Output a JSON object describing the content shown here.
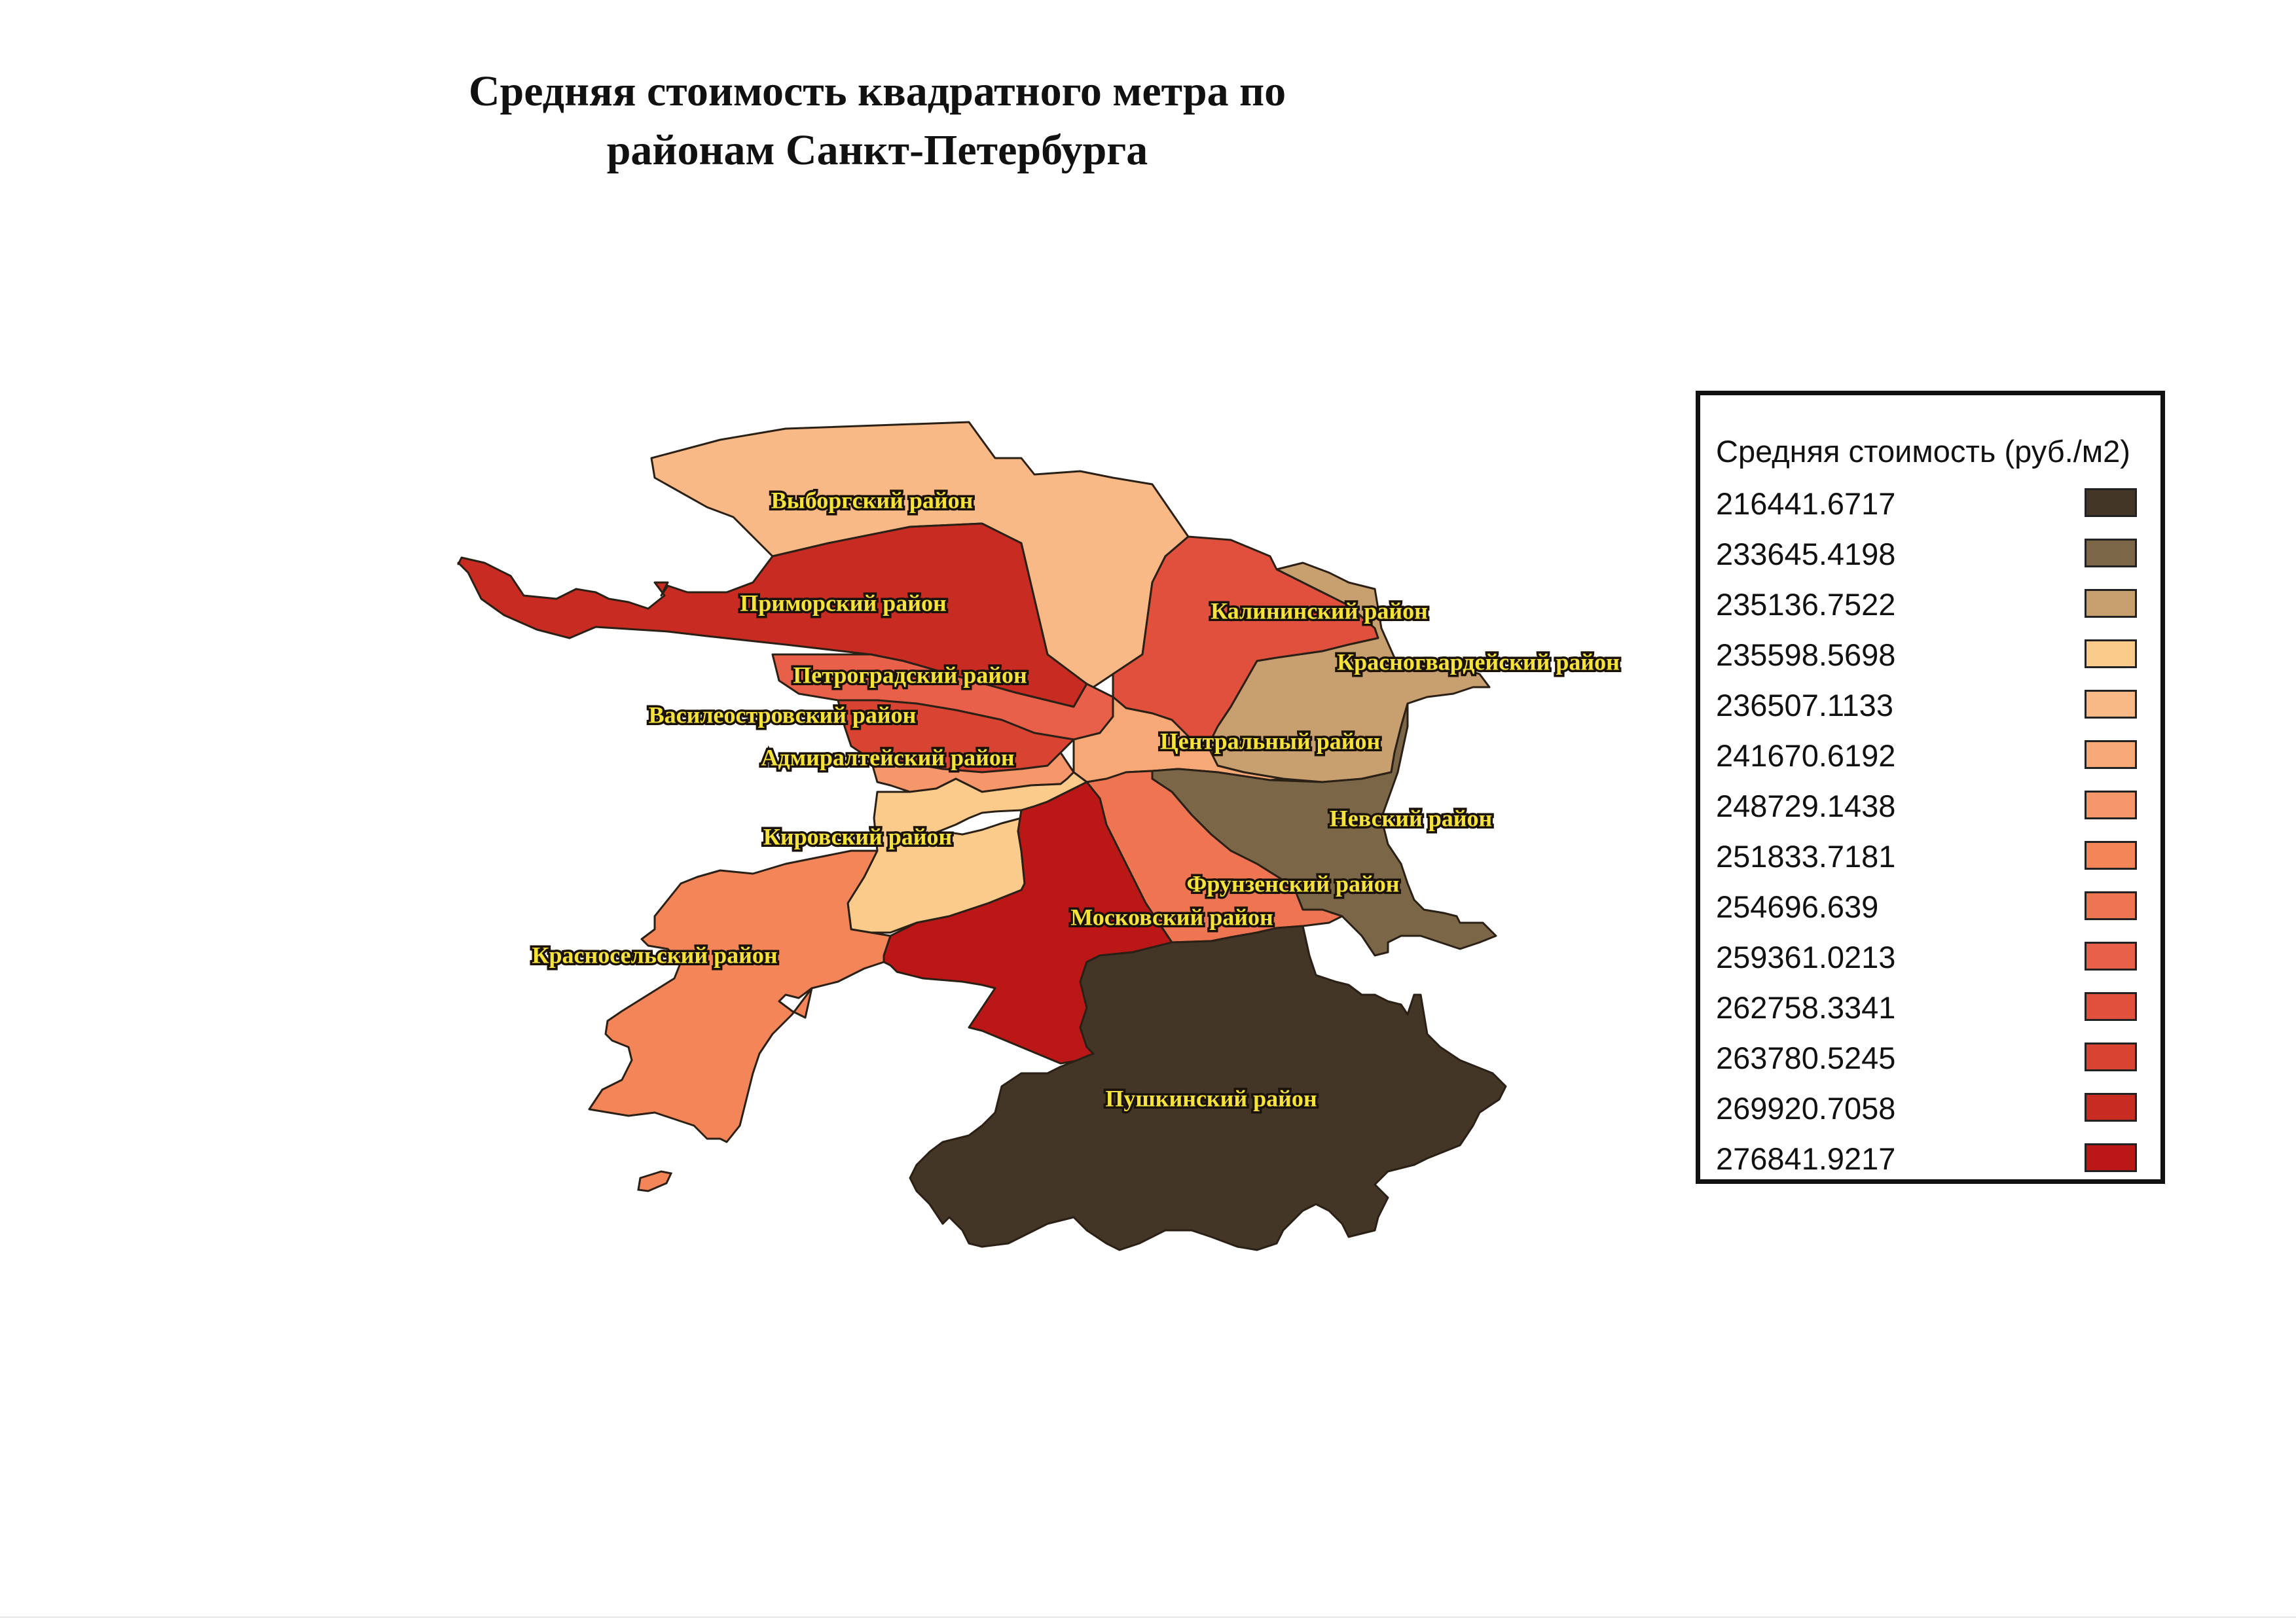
{
  "title": {
    "line1": "Средняя стоимость квадратного метра по",
    "line2": "районам Санкт-Петербурга"
  },
  "legend": {
    "title": "Средняя стоимость (руб./м2)",
    "classes": [
      {
        "value": "216441.6717",
        "color": "#443627"
      },
      {
        "value": "233645.4198",
        "color": "#7b6648"
      },
      {
        "value": "235136.7522",
        "color": "#c8a070"
      },
      {
        "value": "235598.5698",
        "color": "#fbcb8c"
      },
      {
        "value": "236507.1133",
        "color": "#f9b987"
      },
      {
        "value": "241670.6192",
        "color": "#f7a877"
      },
      {
        "value": "248729.1438",
        "color": "#f6966b"
      },
      {
        "value": "251833.7181",
        "color": "#f48559"
      },
      {
        "value": "254696.639",
        "color": "#ef7452"
      },
      {
        "value": "259361.0213",
        "color": "#e8604a"
      },
      {
        "value": "262758.3341",
        "color": "#e0503d"
      },
      {
        "value": "263780.5245",
        "color": "#d94432"
      },
      {
        "value": "269920.7058",
        "color": "#c82b22"
      },
      {
        "value": "276841.9217",
        "color": "#bc1717"
      }
    ]
  },
  "districts": [
    {
      "id": "vyborgsky",
      "name": "Выборгский район",
      "value": "236507.1133",
      "color": "#f9b987"
    },
    {
      "id": "primorsky",
      "name": "Приморский район",
      "value": "269920.7058",
      "color": "#c82b22"
    },
    {
      "id": "kalininsky",
      "name": "Калининский район",
      "value": "262758.3341",
      "color": "#e0503d"
    },
    {
      "id": "krasnogvardeysky",
      "name": "Красногвардейский район",
      "value": "235136.7522",
      "color": "#c8a070"
    },
    {
      "id": "petrogradsky",
      "name": "Петроградский район",
      "value": "259361.0213",
      "color": "#e8604a"
    },
    {
      "id": "vasileostrovsky",
      "name": "Василеостровский район",
      "value": "263780.5245",
      "color": "#d94432"
    },
    {
      "id": "admiralteysky",
      "name": "Адмиралтейский район",
      "value": "248729.1438",
      "color": "#f6966b"
    },
    {
      "id": "tsentralny",
      "name": "Центральный район",
      "value": "241670.6192",
      "color": "#f7a877"
    },
    {
      "id": "nevsky",
      "name": "Невский район",
      "value": "233645.4198",
      "color": "#7b6648"
    },
    {
      "id": "kirovsky",
      "name": "Кировский район",
      "value": "235598.5698",
      "color": "#fbcb8c"
    },
    {
      "id": "frunzensky",
      "name": "Фрунзенский район",
      "value": "254696.639",
      "color": "#ef7452"
    },
    {
      "id": "moskovsky",
      "name": "Московский район",
      "value": "276841.9217",
      "color": "#bc1717"
    },
    {
      "id": "krasnoselsky",
      "name": "Красносельский район",
      "value": "251833.7181",
      "color": "#f48559"
    },
    {
      "id": "pushkinsky",
      "name": "Пушкинский район",
      "value": "216441.6717",
      "color": "#443627"
    }
  ]
}
